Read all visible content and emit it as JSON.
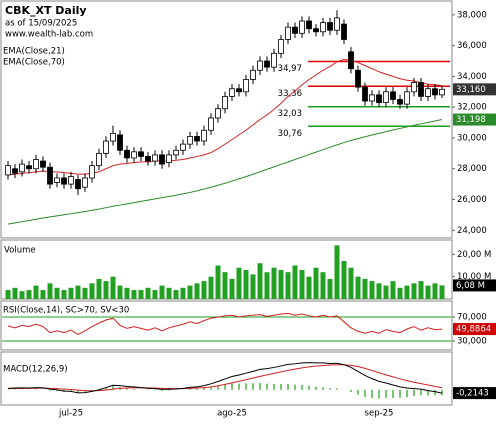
{
  "chart_data": [
    {
      "type": "candlestick",
      "title": "CBK_XT Daily",
      "subtitle": "as of 15/09/2025",
      "annotation": "www.wealth-lab.com",
      "categories": [
        null,
        null,
        null,
        null,
        null,
        null,
        null,
        null,
        null,
        "jul-25",
        null,
        null,
        null,
        null,
        null,
        null,
        null,
        null,
        null,
        null,
        null,
        null,
        null,
        null,
        null,
        null,
        null,
        null,
        null,
        null,
        null,
        null,
        "ago-25",
        null,
        null,
        null,
        null,
        null,
        null,
        null,
        null,
        null,
        null,
        null,
        null,
        null,
        null,
        null,
        null,
        null,
        null,
        null,
        null,
        "sep-25",
        null,
        null,
        null,
        null,
        null,
        null,
        null,
        null,
        null
      ],
      "open": [
        27.6,
        28.0,
        27.8,
        28.2,
        28.0,
        28.5,
        28.1,
        27.1,
        27.4,
        27.0,
        27.3,
        26.8,
        27.4,
        28.2,
        29.0,
        29.8,
        30.2,
        29.2,
        28.7,
        29.1,
        28.8,
        28.5,
        28.9,
        28.4,
        28.9,
        29.2,
        29.6,
        30.1,
        29.8,
        30.5,
        31.3,
        31.9,
        32.7,
        33.2,
        33.0,
        33.8,
        34.4,
        35.0,
        34.6,
        35.5,
        36.4,
        37.2,
        36.8,
        37.6,
        37.1,
        36.9,
        37.5,
        37.0,
        37.4,
        35.6,
        34.4,
        33.3,
        32.4,
        32.8,
        32.3,
        33.0,
        32.5,
        32.2,
        33.0,
        33.6,
        32.7,
        33.2,
        32.8
      ],
      "high": [
        28.5,
        28.3,
        28.6,
        28.5,
        28.9,
        28.8,
        28.4,
        27.7,
        27.7,
        27.8,
        27.6,
        27.7,
        28.5,
        29.3,
        30.1,
        30.8,
        30.5,
        29.5,
        29.4,
        29.4,
        29.1,
        29.2,
        29.2,
        29.2,
        29.5,
        29.9,
        30.4,
        30.4,
        30.8,
        31.6,
        32.2,
        33.0,
        33.5,
        33.5,
        34.1,
        34.7,
        35.3,
        35.3,
        35.8,
        36.7,
        37.5,
        37.5,
        37.9,
        37.9,
        37.4,
        37.8,
        37.8,
        38.3,
        37.7,
        35.9,
        34.7,
        33.6,
        33.1,
        33.1,
        33.3,
        33.3,
        32.8,
        33.3,
        33.9,
        33.9,
        33.5,
        33.5,
        33.4
      ],
      "low": [
        27.3,
        27.4,
        27.5,
        27.7,
        27.7,
        27.8,
        26.7,
        26.8,
        26.7,
        26.7,
        26.3,
        26.5,
        27.1,
        27.9,
        28.7,
        29.5,
        28.9,
        28.4,
        28.4,
        28.5,
        28.2,
        28.2,
        28.0,
        28.1,
        28.6,
        28.9,
        29.3,
        29.5,
        29.5,
        30.2,
        31.0,
        31.6,
        32.4,
        32.7,
        32.7,
        33.5,
        34.1,
        34.3,
        34.3,
        35.2,
        36.1,
        36.5,
        36.5,
        36.8,
        36.6,
        36.6,
        36.7,
        36.7,
        36.1,
        34.2,
        33.0,
        32.1,
        32.1,
        32.0,
        32.0,
        32.2,
        31.9,
        31.9,
        32.7,
        32.4,
        32.4,
        32.5,
        32.6
      ],
      "close": [
        28.2,
        27.7,
        28.3,
        28.0,
        28.6,
        28.1,
        27.0,
        27.4,
        27.0,
        27.5,
        26.7,
        27.4,
        28.2,
        29.0,
        29.8,
        30.3,
        29.2,
        28.7,
        29.1,
        28.8,
        28.5,
        28.9,
        28.3,
        28.9,
        29.2,
        29.6,
        30.1,
        29.8,
        30.5,
        31.3,
        31.9,
        32.7,
        33.2,
        33.0,
        33.8,
        34.4,
        35.0,
        34.6,
        35.5,
        36.4,
        37.2,
        36.8,
        37.6,
        37.1,
        36.9,
        37.5,
        37.0,
        37.8,
        36.4,
        34.5,
        33.3,
        32.4,
        32.8,
        32.3,
        33.0,
        32.5,
        32.2,
        33.0,
        33.6,
        32.7,
        33.2,
        32.8,
        33.16
      ],
      "last_label": "33,160",
      "up_color": "#ffffff",
      "down_color": "#000000",
      "series": [
        {
          "name": "EMA(Close,21)",
          "color": "#d62020",
          "values": [
            27.6,
            27.65,
            27.7,
            27.75,
            27.8,
            27.85,
            27.8,
            27.8,
            27.75,
            27.7,
            27.65,
            27.65,
            27.7,
            27.8,
            28.0,
            28.2,
            28.3,
            28.35,
            28.4,
            28.45,
            28.45,
            28.5,
            28.5,
            28.5,
            28.55,
            28.6,
            28.7,
            28.8,
            28.9,
            29.05,
            29.3,
            29.6,
            29.9,
            30.2,
            30.5,
            30.85,
            31.2,
            31.5,
            31.85,
            32.25,
            32.7,
            33.05,
            33.45,
            33.8,
            34.1,
            34.4,
            34.65,
            34.95,
            35.1,
            35.05,
            34.9,
            34.7,
            34.5,
            34.3,
            34.15,
            34.0,
            33.85,
            33.75,
            33.7,
            33.6,
            33.5,
            33.45,
            33.4
          ]
        },
        {
          "name": "EMA(Close,70)",
          "color": "#2a8a2a",
          "last_label": "31,198",
          "values": [
            24.4,
            24.48,
            24.56,
            24.64,
            24.72,
            24.8,
            24.87,
            24.94,
            25.01,
            25.08,
            25.15,
            25.22,
            25.3,
            25.38,
            25.47,
            25.56,
            25.64,
            25.72,
            25.8,
            25.88,
            25.96,
            26.04,
            26.12,
            26.2,
            26.28,
            26.37,
            26.46,
            26.56,
            26.68,
            26.8,
            26.93,
            27.06,
            27.2,
            27.34,
            27.49,
            27.64,
            27.8,
            27.96,
            28.12,
            28.28,
            28.44,
            28.6,
            28.76,
            28.92,
            29.08,
            29.24,
            29.4,
            29.55,
            29.7,
            29.84,
            29.96,
            30.08,
            30.19,
            30.3,
            30.41,
            30.52,
            30.62,
            30.72,
            30.82,
            30.92,
            31.01,
            31.1,
            31.198
          ]
        }
      ],
      "levels": [
        {
          "value": 34.97,
          "label": "34,97",
          "color": "#e00000"
        },
        {
          "value": 33.36,
          "label": "33,36",
          "color": "#e00000"
        },
        {
          "value": 32.03,
          "label": "32,03",
          "color": "#1e9e1e"
        },
        {
          "value": 30.76,
          "label": "30,76",
          "color": "#1e9e1e"
        }
      ],
      "ylim": [
        23.5,
        38.9
      ],
      "yticks": [
        {
          "value": 24,
          "label": "24,000"
        },
        {
          "value": 26,
          "label": "26,000"
        },
        {
          "value": 28,
          "label": "28,000"
        },
        {
          "value": 30,
          "label": "30,000"
        },
        {
          "value": 32,
          "label": "32,000"
        },
        {
          "value": 34,
          "label": "34,000"
        },
        {
          "value": 36,
          "label": "36,000"
        },
        {
          "value": 38,
          "label": "38,000"
        }
      ]
    },
    {
      "type": "bar",
      "title": "Volume",
      "color": "#22a022",
      "values": [
        4,
        5,
        3.5,
        4,
        6,
        4,
        7,
        5,
        4,
        5,
        6,
        5,
        7,
        9,
        8,
        10,
        6,
        5,
        4,
        4,
        5,
        4,
        6,
        5,
        4,
        5,
        6,
        7,
        8,
        10,
        15,
        12,
        9,
        14,
        13,
        11,
        16,
        12,
        14,
        13,
        12,
        15,
        13,
        10,
        14,
        12,
        9,
        24,
        17,
        14,
        10,
        9,
        8,
        7,
        6,
        8,
        5,
        6,
        7,
        8,
        6,
        7,
        6.08
      ],
      "last_label": "6,08 M",
      "ylim": [
        0,
        26.4
      ],
      "yticks": [
        {
          "value": 10,
          "label": "10,00 M"
        },
        {
          "value": 20,
          "label": "20,00 M"
        }
      ]
    },
    {
      "type": "line",
      "title": "RSI(Close,14), SC>70, SV<30",
      "series": [
        {
          "color": "#d62020",
          "last_label": "49,8864",
          "values": [
            55,
            52,
            56,
            54,
            58,
            54,
            44,
            47,
            44,
            48,
            41,
            47,
            54,
            60,
            65,
            68,
            56,
            51,
            54,
            51,
            48,
            52,
            47,
            52,
            55,
            58,
            62,
            59,
            64,
            68,
            70,
            72,
            73,
            70,
            72,
            73,
            74,
            71,
            73,
            75,
            76,
            73,
            75,
            72,
            70,
            73,
            70,
            72,
            62,
            52,
            46,
            43,
            46,
            43,
            49,
            46,
            44,
            50,
            54,
            48,
            52,
            49,
            49.8864
          ]
        }
      ],
      "band_color": "#1e9e1e",
      "ylim": [
        15,
        96.7
      ],
      "yticks": [
        {
          "value": 30,
          "label": "30,000"
        },
        {
          "value": 70,
          "label": "70,000"
        }
      ]
    },
    {
      "type": "macd",
      "title": "MACD(12,26,9)",
      "macd": [
        0.1,
        0.12,
        0.13,
        0.12,
        0.15,
        0.14,
        0.05,
        0.0,
        -0.08,
        -0.1,
        -0.2,
        -0.18,
        -0.1,
        0.0,
        0.15,
        0.3,
        0.28,
        0.22,
        0.2,
        0.15,
        0.1,
        0.08,
        0.03,
        0.04,
        0.06,
        0.1,
        0.16,
        0.2,
        0.28,
        0.4,
        0.55,
        0.72,
        0.88,
        0.98,
        1.1,
        1.22,
        1.35,
        1.4,
        1.48,
        1.58,
        1.68,
        1.72,
        1.78,
        1.8,
        1.78,
        1.78,
        1.74,
        1.76,
        1.66,
        1.48,
        1.22,
        0.95,
        0.74,
        0.56,
        0.45,
        0.32,
        0.2,
        0.12,
        0.08,
        0.05,
        -0.05,
        -0.12,
        -0.2143
      ],
      "signal": [
        0.08,
        0.09,
        0.1,
        0.1,
        0.11,
        0.12,
        0.1,
        0.08,
        0.05,
        0.02,
        -0.02,
        -0.05,
        -0.06,
        -0.05,
        -0.01,
        0.05,
        0.1,
        0.12,
        0.14,
        0.14,
        0.13,
        0.12,
        0.1,
        0.09,
        0.08,
        0.08,
        0.1,
        0.12,
        0.15,
        0.2,
        0.27,
        0.36,
        0.46,
        0.57,
        0.67,
        0.78,
        0.89,
        0.99,
        1.09,
        1.19,
        1.29,
        1.37,
        1.45,
        1.52,
        1.57,
        1.61,
        1.64,
        1.66,
        1.66,
        1.62,
        1.54,
        1.42,
        1.28,
        1.13,
        0.99,
        0.86,
        0.73,
        0.61,
        0.5,
        0.41,
        0.32,
        0.23,
        0.14
      ],
      "histogram": [
        0.02,
        0.03,
        0.03,
        0.02,
        0.04,
        0.02,
        -0.05,
        -0.08,
        -0.13,
        -0.12,
        -0.18,
        -0.13,
        -0.04,
        0.05,
        0.16,
        0.25,
        0.18,
        0.1,
        0.06,
        0.01,
        -0.03,
        -0.04,
        -0.07,
        -0.05,
        -0.02,
        0.02,
        0.06,
        0.08,
        0.13,
        0.2,
        0.28,
        0.36,
        0.42,
        0.41,
        0.43,
        0.44,
        0.46,
        0.41,
        0.39,
        0.39,
        0.39,
        0.35,
        0.33,
        0.28,
        0.21,
        0.17,
        0.1,
        0.1,
        0.0,
        -0.14,
        -0.32,
        -0.47,
        -0.54,
        -0.57,
        -0.54,
        -0.54,
        -0.53,
        -0.49,
        -0.42,
        -0.36,
        -0.37,
        -0.35,
        -0.3543
      ],
      "macd_color": "#000000",
      "signal_color": "#d62020",
      "histogram_color": "#1e9e1e",
      "last_label": "-0,2143",
      "ylim": [
        -1,
        2.5
      ]
    }
  ]
}
